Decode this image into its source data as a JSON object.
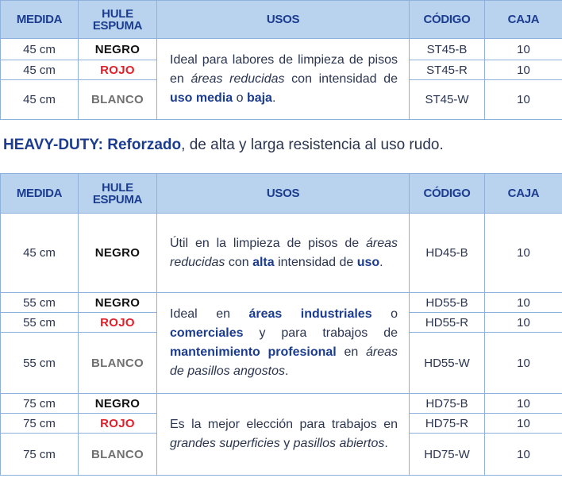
{
  "tables": [
    {
      "header": [
        "MEDIDA",
        "HULE\nESPUMA",
        "USOS",
        "CÓDIGO",
        "CAJA"
      ],
      "groups": [
        {
          "usos": [
            {
              "t": "Ideal para labores de limpieza de pisos en "
            },
            {
              "t": "áreas reducidas",
              "i": true
            },
            {
              "t": " con intensidad de "
            },
            {
              "t": "uso media",
              "b": true
            },
            {
              "t": " o "
            },
            {
              "t": "baja",
              "b": true
            },
            {
              "t": "."
            }
          ],
          "rows": [
            {
              "medida": "45 cm",
              "hule": "NEGRO",
              "hule_color": "#111111",
              "codigo": "ST45-B",
              "caja": "10"
            },
            {
              "medida": "45 cm",
              "hule": "ROJO",
              "hule_color": "#e0202a",
              "codigo": "ST45-R",
              "caja": "10"
            },
            {
              "medida": "45 cm",
              "hule": "BLANCO",
              "hule_color": "#707070",
              "codigo": "ST45-W",
              "caja": "10"
            }
          ]
        }
      ]
    },
    {
      "header": [
        "MEDIDA",
        "HULE\nESPUMA",
        "USOS",
        "CÓDIGO",
        "CAJA"
      ],
      "groups": [
        {
          "usos": [
            {
              "t": "Útil en la limpieza de pisos de "
            },
            {
              "t": "áreas reducidas",
              "i": true
            },
            {
              "t": " con "
            },
            {
              "t": "alta",
              "b": true
            },
            {
              "t": " intensidad de "
            },
            {
              "t": "uso",
              "b": true
            },
            {
              "t": "."
            }
          ],
          "rows": [
            {
              "medida": "45 cm",
              "hule": "NEGRO",
              "hule_color": "#111111",
              "codigo": "HD45-B",
              "caja": "10"
            }
          ]
        },
        {
          "usos": [
            {
              "t": "Ideal en "
            },
            {
              "t": "áreas industriales",
              "b": true
            },
            {
              "t": " o "
            },
            {
              "t": "comerciales",
              "b": true
            },
            {
              "t": " y para trabajos de "
            },
            {
              "t": "mantenimiento profesional",
              "b": true
            },
            {
              "t": " en "
            },
            {
              "t": "áreas de pasillos angostos",
              "i": true
            },
            {
              "t": "."
            }
          ],
          "rows": [
            {
              "medida": "55 cm",
              "hule": "NEGRO",
              "hule_color": "#111111",
              "codigo": "HD55-B",
              "caja": "10"
            },
            {
              "medida": "55 cm",
              "hule": "ROJO",
              "hule_color": "#e0202a",
              "codigo": "HD55-R",
              "caja": "10"
            },
            {
              "medida": "55 cm",
              "hule": "BLANCO",
              "hule_color": "#707070",
              "codigo": "HD55-W",
              "caja": "10"
            }
          ]
        },
        {
          "usos": [
            {
              "t": "Es la mejor elección para trabajos en "
            },
            {
              "t": "grandes superficies",
              "i": true
            },
            {
              "t": " y "
            },
            {
              "t": "pasillos abiertos",
              "i": true
            },
            {
              "t": "."
            }
          ],
          "rows": [
            {
              "medida": "75 cm",
              "hule": "NEGRO",
              "hule_color": "#111111",
              "codigo": "HD75-B",
              "caja": "10"
            },
            {
              "medida": "75 cm",
              "hule": "ROJO",
              "hule_color": "#e0202a",
              "codigo": "HD75-R",
              "caja": "10"
            },
            {
              "medida": "75 cm",
              "hule": "BLANCO",
              "hule_color": "#707070",
              "codigo": "HD75-W",
              "caja": "10"
            }
          ]
        }
      ]
    }
  ],
  "heading": [
    {
      "t": "HEAVY-DUTY:",
      "b": true
    },
    {
      "t": " Reforzado",
      "b": true
    },
    {
      "t": ", de alta y larga resistencia al uso rudo."
    }
  ]
}
